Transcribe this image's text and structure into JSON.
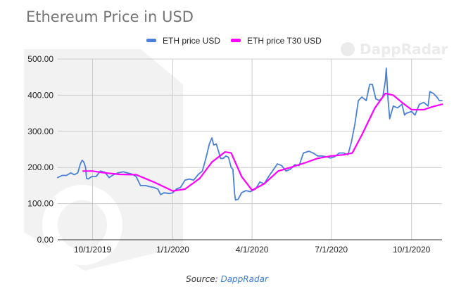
{
  "chart_data": {
    "type": "line",
    "title": "Ethereum Price in USD",
    "xlabel": "",
    "ylabel": "",
    "x_ticks": [
      "10/1/2019",
      "1/1/2020",
      "4/1/2020",
      "7/1/2020",
      "10/1/2020"
    ],
    "y_ticks": [
      "0.00",
      "100.00",
      "200.00",
      "300.00",
      "400.00",
      "500.00"
    ],
    "ylim": [
      0,
      500
    ],
    "xlim": [
      "2019-08-22",
      "2020-11-05"
    ],
    "grid": true,
    "legend_position": "top",
    "series": [
      {
        "name": "ETH price USD",
        "color": "#4a80d9",
        "points": [
          [
            "2019-08-22",
            172
          ],
          [
            "2019-08-27",
            178
          ],
          [
            "2019-09-01",
            178
          ],
          [
            "2019-09-06",
            185
          ],
          [
            "2019-09-10",
            180
          ],
          [
            "2019-09-14",
            185
          ],
          [
            "2019-09-17",
            210
          ],
          [
            "2019-09-19",
            220
          ],
          [
            "2019-09-21",
            215
          ],
          [
            "2019-09-23",
            200
          ],
          [
            "2019-09-24",
            170
          ],
          [
            "2019-09-26",
            168
          ],
          [
            "2019-09-30",
            175
          ],
          [
            "2019-10-05",
            175
          ],
          [
            "2019-10-10",
            190
          ],
          [
            "2019-10-15",
            187
          ],
          [
            "2019-10-20",
            172
          ],
          [
            "2019-10-25",
            180
          ],
          [
            "2019-10-30",
            185
          ],
          [
            "2019-11-05",
            188
          ],
          [
            "2019-11-10",
            185
          ],
          [
            "2019-11-15",
            182
          ],
          [
            "2019-11-20",
            175
          ],
          [
            "2019-11-25",
            150
          ],
          [
            "2019-12-01",
            150
          ],
          [
            "2019-12-05",
            147
          ],
          [
            "2019-12-10",
            145
          ],
          [
            "2019-12-15",
            140
          ],
          [
            "2019-12-18",
            125
          ],
          [
            "2019-12-22",
            130
          ],
          [
            "2019-12-28",
            128
          ],
          [
            "2020-01-01",
            130
          ],
          [
            "2020-01-05",
            140
          ],
          [
            "2020-01-10",
            145
          ],
          [
            "2020-01-15",
            165
          ],
          [
            "2020-01-20",
            168
          ],
          [
            "2020-01-25",
            165
          ],
          [
            "2020-01-30",
            180
          ],
          [
            "2020-02-04",
            190
          ],
          [
            "2020-02-08",
            225
          ],
          [
            "2020-02-12",
            265
          ],
          [
            "2020-02-15",
            282
          ],
          [
            "2020-02-17",
            262
          ],
          [
            "2020-02-20",
            265
          ],
          [
            "2020-02-25",
            225
          ],
          [
            "2020-02-28",
            225
          ],
          [
            "2020-03-02",
            232
          ],
          [
            "2020-03-05",
            228
          ],
          [
            "2020-03-08",
            200
          ],
          [
            "2020-03-10",
            195
          ],
          [
            "2020-03-12",
            128
          ],
          [
            "2020-03-13",
            110
          ],
          [
            "2020-03-16",
            112
          ],
          [
            "2020-03-20",
            130
          ],
          [
            "2020-03-25",
            136
          ],
          [
            "2020-03-30",
            133
          ],
          [
            "2020-04-05",
            140
          ],
          [
            "2020-04-10",
            160
          ],
          [
            "2020-04-15",
            155
          ],
          [
            "2020-04-20",
            175
          ],
          [
            "2020-04-25",
            192
          ],
          [
            "2020-04-30",
            210
          ],
          [
            "2020-05-05",
            205
          ],
          [
            "2020-05-10",
            190
          ],
          [
            "2020-05-15",
            195
          ],
          [
            "2020-05-20",
            208
          ],
          [
            "2020-05-25",
            205
          ],
          [
            "2020-05-30",
            240
          ],
          [
            "2020-06-05",
            245
          ],
          [
            "2020-06-10",
            240
          ],
          [
            "2020-06-15",
            232
          ],
          [
            "2020-06-20",
            232
          ],
          [
            "2020-06-25",
            230
          ],
          [
            "2020-06-30",
            226
          ],
          [
            "2020-07-05",
            230
          ],
          [
            "2020-07-10",
            240
          ],
          [
            "2020-07-15",
            240
          ],
          [
            "2020-07-20",
            235
          ],
          [
            "2020-07-24",
            270
          ],
          [
            "2020-07-28",
            320
          ],
          [
            "2020-08-01",
            385
          ],
          [
            "2020-08-05",
            395
          ],
          [
            "2020-08-10",
            385
          ],
          [
            "2020-08-14",
            430
          ],
          [
            "2020-08-17",
            430
          ],
          [
            "2020-08-21",
            390
          ],
          [
            "2020-08-25",
            385
          ],
          [
            "2020-08-29",
            395
          ],
          [
            "2020-09-01",
            440
          ],
          [
            "2020-09-02",
            475
          ],
          [
            "2020-09-04",
            390
          ],
          [
            "2020-09-06",
            335
          ],
          [
            "2020-09-10",
            370
          ],
          [
            "2020-09-15",
            365
          ],
          [
            "2020-09-20",
            375
          ],
          [
            "2020-09-23",
            345
          ],
          [
            "2020-09-25",
            350
          ],
          [
            "2020-10-01",
            355
          ],
          [
            "2020-10-05",
            345
          ],
          [
            "2020-10-10",
            375
          ],
          [
            "2020-10-15",
            380
          ],
          [
            "2020-10-20",
            370
          ],
          [
            "2020-10-22",
            410
          ],
          [
            "2020-10-26",
            405
          ],
          [
            "2020-10-30",
            395
          ],
          [
            "2020-11-02",
            385
          ],
          [
            "2020-11-05",
            385
          ]
        ]
      },
      {
        "name": "ETH price T30 USD",
        "color": "#ff00ff",
        "points": [
          [
            "2019-09-20",
            190
          ],
          [
            "2019-10-01",
            190
          ],
          [
            "2019-10-15",
            185
          ],
          [
            "2019-11-01",
            181
          ],
          [
            "2019-11-20",
            180
          ],
          [
            "2019-12-10",
            160
          ],
          [
            "2020-01-01",
            135
          ],
          [
            "2020-01-15",
            140
          ],
          [
            "2020-02-01",
            170
          ],
          [
            "2020-02-15",
            215
          ],
          [
            "2020-03-01",
            243
          ],
          [
            "2020-03-08",
            240
          ],
          [
            "2020-03-20",
            175
          ],
          [
            "2020-04-01",
            137
          ],
          [
            "2020-04-15",
            155
          ],
          [
            "2020-05-01",
            190
          ],
          [
            "2020-05-15",
            200
          ],
          [
            "2020-06-01",
            213
          ],
          [
            "2020-06-15",
            225
          ],
          [
            "2020-07-01",
            232
          ],
          [
            "2020-07-15",
            235
          ],
          [
            "2020-07-25",
            240
          ],
          [
            "2020-08-05",
            290
          ],
          [
            "2020-08-20",
            365
          ],
          [
            "2020-09-01",
            405
          ],
          [
            "2020-09-10",
            400
          ],
          [
            "2020-09-20",
            380
          ],
          [
            "2020-10-01",
            360
          ],
          [
            "2020-10-15",
            360
          ],
          [
            "2020-10-25",
            368
          ],
          [
            "2020-11-05",
            375
          ]
        ]
      }
    ]
  },
  "watermark": "DappRadar",
  "source": {
    "prefix": "Source:",
    "link": "DappRadar"
  }
}
